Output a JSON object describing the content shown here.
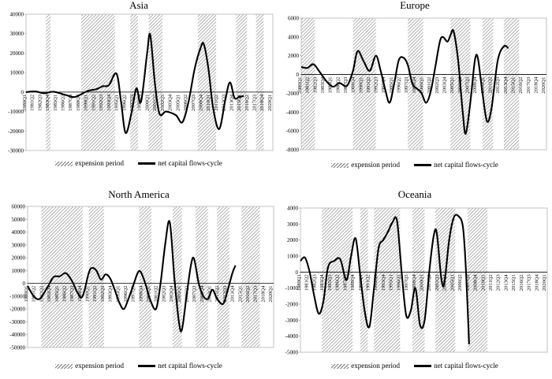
{
  "legend": {
    "expansion_label": "expension period",
    "line_label": "net capital flows-cycle"
  },
  "chart_data": [
    {
      "type": "line",
      "title": "Asia",
      "ylim": [
        -30000,
        40000
      ],
      "yticks": [
        -30000,
        -20000,
        -10000,
        0,
        10000,
        20000,
        30000,
        40000
      ],
      "n_quarters": 162,
      "x_tick_labels": [
        "1980Q1",
        "1981Q2",
        "1982Q3",
        "1983Q4",
        "1985Q1",
        "1986Q2",
        "1987Q3",
        "1988Q4",
        "1990Q1",
        "1991Q2",
        "1992Q3",
        "1993Q4",
        "1995Q1",
        "1996Q2",
        "1997Q3",
        "1998Q4",
        "2000Q1",
        "2001Q2",
        "2002Q3",
        "2003Q4",
        "2005Q1",
        "2006Q2",
        "2007Q3",
        "2008Q4",
        "2010Q1",
        "2011Q2",
        "2012Q3",
        "2013Q4",
        "2015Q1",
        "2016Q2",
        "2017Q3",
        "2018Q4",
        "2020Q1"
      ],
      "tick_every": 5,
      "expansion_periods": [
        [
          13,
          16
        ],
        [
          36,
          58
        ],
        [
          68,
          73
        ],
        [
          80,
          89
        ],
        [
          112,
          124
        ],
        [
          137,
          144
        ],
        [
          150,
          155
        ]
      ],
      "series": [
        {
          "name": "net capital flows-cycle",
          "points": [
            [
              0,
              0
            ],
            [
              6,
              300
            ],
            [
              12,
              -600
            ],
            [
              18,
              200
            ],
            [
              26,
              -1500
            ],
            [
              32,
              -2500
            ],
            [
              40,
              500
            ],
            [
              46,
              1500
            ],
            [
              50,
              3000
            ],
            [
              54,
              3500
            ],
            [
              59,
              9500
            ],
            [
              62,
              -5000
            ],
            [
              65,
              -21000
            ],
            [
              69,
              -10000
            ],
            [
              72,
              2000
            ],
            [
              75,
              -5000
            ],
            [
              79,
              20000
            ],
            [
              81,
              29500
            ],
            [
              84,
              5000
            ],
            [
              87,
              -11000
            ],
            [
              91,
              -10000
            ],
            [
              94,
              -10500
            ],
            [
              98,
              -12000
            ],
            [
              102,
              -15500
            ],
            [
              106,
              -5000
            ],
            [
              110,
              12000
            ],
            [
              114,
              23000
            ],
            [
              116,
              24500
            ],
            [
              119,
              12000
            ],
            [
              122,
              -8000
            ],
            [
              126,
              -19000
            ],
            [
              130,
              -4000
            ],
            [
              133,
              5000
            ],
            [
              136,
              -3000
            ],
            [
              139,
              -2500
            ],
            [
              142,
              -2000
            ]
          ]
        }
      ]
    },
    {
      "type": "line",
      "title": "Europe",
      "ylim": [
        -8000,
        6000
      ],
      "yticks": [
        -8000,
        -6000,
        -4000,
        -2000,
        0,
        2000,
        4000,
        6000
      ],
      "n_quarters": 162,
      "x_tick_labels": [
        "1980Q1",
        "1981Q2",
        "1982Q3",
        "1983Q4",
        "1985Q1",
        "1986Q2",
        "1987Q3",
        "1988Q4",
        "1990Q1",
        "1991Q2",
        "1992Q3",
        "1993Q4",
        "1995Q1",
        "1996Q2",
        "1997Q3",
        "1998Q4",
        "2000Q1",
        "2001Q2",
        "2002Q3",
        "2003Q4",
        "2005Q1",
        "2006Q2",
        "2007Q3",
        "2008Q4",
        "2010Q1",
        "2011Q2",
        "2012Q3",
        "2013Q4",
        "2015Q1",
        "2016Q2",
        "2017Q3",
        "2018Q4",
        "2020Q1"
      ],
      "tick_every": 5,
      "expansion_periods": [
        [
          0,
          9
        ],
        [
          34,
          49
        ],
        [
          70,
          80
        ],
        [
          98,
          111
        ],
        [
          119,
          126
        ],
        [
          133,
          143
        ]
      ],
      "series": [
        {
          "name": "net capital flows-cycle",
          "points": [
            [
              0,
              800
            ],
            [
              4,
              700
            ],
            [
              8,
              1100
            ],
            [
              12,
              300
            ],
            [
              17,
              -800
            ],
            [
              21,
              -1300
            ],
            [
              25,
              -900
            ],
            [
              30,
              -1200
            ],
            [
              34,
              400
            ],
            [
              37,
              2500
            ],
            [
              41,
              1400
            ],
            [
              45,
              400
            ],
            [
              49,
              2000
            ],
            [
              52,
              500
            ],
            [
              55,
              -1500
            ],
            [
              58,
              -3000
            ],
            [
              61,
              -1000
            ],
            [
              64,
              1500
            ],
            [
              67,
              1800
            ],
            [
              70,
              1000
            ],
            [
              73,
              -1000
            ],
            [
              76,
              -1500
            ],
            [
              79,
              -2000
            ],
            [
              82,
              -3000
            ],
            [
              85,
              -1800
            ],
            [
              88,
              800
            ],
            [
              91,
              3500
            ],
            [
              93,
              4000
            ],
            [
              96,
              3500
            ],
            [
              98,
              4200
            ],
            [
              100,
              4600
            ],
            [
              103,
              1500
            ],
            [
              106,
              -4000
            ],
            [
              108,
              -6300
            ],
            [
              111,
              -3000
            ],
            [
              114,
              1500
            ],
            [
              116,
              1700
            ],
            [
              119,
              -2000
            ],
            [
              122,
              -5000
            ],
            [
              125,
              -3500
            ],
            [
              129,
              1500
            ],
            [
              133,
              3000
            ],
            [
              136,
              2800
            ]
          ]
        }
      ]
    },
    {
      "type": "line",
      "title": "North America",
      "ylim": [
        -50000,
        60000
      ],
      "yticks": [
        -50000,
        -40000,
        -30000,
        -20000,
        -10000,
        0,
        10000,
        20000,
        30000,
        40000,
        50000,
        60000
      ],
      "n_quarters": 162,
      "x_tick_labels": [
        "1980Q1",
        "1981Q2",
        "1982Q3",
        "1983Q4",
        "1985Q1",
        "1986Q2",
        "1987Q3",
        "1988Q4",
        "1990Q1",
        "1991Q2",
        "1992Q3",
        "1993Q4",
        "1995Q1",
        "1996Q2",
        "1997Q3",
        "1998Q4",
        "2000Q1",
        "2001Q2",
        "2002Q3",
        "2003Q4",
        "2005Q1",
        "2006Q2",
        "2007Q3",
        "2008Q4",
        "2010Q1",
        "2011Q2",
        "2012Q3",
        "2013Q4",
        "2015Q1",
        "2016Q2",
        "2017Q3",
        "2018Q4",
        "2020Q1"
      ],
      "tick_every": 5,
      "expansion_periods": [
        [
          9,
          36
        ],
        [
          40,
          50
        ],
        [
          73,
          81
        ],
        [
          95,
          101
        ],
        [
          110,
          118
        ],
        [
          124,
          132
        ],
        [
          140,
          152
        ]
      ],
      "series": [
        {
          "name": "net capital flows-cycle",
          "points": [
            [
              0,
              -2000
            ],
            [
              4,
              -10000
            ],
            [
              8,
              -12000
            ],
            [
              13,
              -3000
            ],
            [
              17,
              5000
            ],
            [
              21,
              5500
            ],
            [
              25,
              8000
            ],
            [
              29,
              2000
            ],
            [
              33,
              -8000
            ],
            [
              36,
              -10000
            ],
            [
              40,
              8000
            ],
            [
              42,
              12000
            ],
            [
              45,
              10000
            ],
            [
              48,
              3000
            ],
            [
              51,
              7000
            ],
            [
              54,
              4000
            ],
            [
              57,
              -5000
            ],
            [
              60,
              -15000
            ],
            [
              63,
              -20000
            ],
            [
              66,
              -12000
            ],
            [
              69,
              -2000
            ],
            [
              72,
              8000
            ],
            [
              74,
              9000
            ],
            [
              77,
              0
            ],
            [
              80,
              -12000
            ],
            [
              84,
              -20000
            ],
            [
              87,
              0
            ],
            [
              90,
              30000
            ],
            [
              93,
              48000
            ],
            [
              96,
              5000
            ],
            [
              99,
              -30000
            ],
            [
              101,
              -36000
            ],
            [
              104,
              -10000
            ],
            [
              107,
              15000
            ],
            [
              109,
              19000
            ],
            [
              112,
              0
            ],
            [
              115,
              -10000
            ],
            [
              118,
              -12000
            ],
            [
              121,
              -5000
            ],
            [
              124,
              -12000
            ],
            [
              128,
              -16000
            ],
            [
              131,
              -5000
            ],
            [
              134,
              8000
            ],
            [
              136,
              14000
            ]
          ]
        }
      ]
    },
    {
      "type": "line",
      "title": "Oceania",
      "ylim": [
        -5000,
        4000
      ],
      "yticks": [
        -5000,
        -4000,
        -3000,
        -2000,
        -1000,
        0,
        1000,
        2000,
        3000,
        4000
      ],
      "n_quarters": 162,
      "x_tick_labels": [
        "1980Q1",
        "1981Q2",
        "1982Q3",
        "1983Q4",
        "1985Q1",
        "1986Q2",
        "1987Q3",
        "1988Q4",
        "1990Q1",
        "1991Q2",
        "1992Q3",
        "1993Q4",
        "1995Q1",
        "1996Q2",
        "1997Q3",
        "1998Q4",
        "2000Q1",
        "2001Q2",
        "2002Q3",
        "2003Q4",
        "2005Q1",
        "2006Q2",
        "2007Q3",
        "2008Q4",
        "2010Q1",
        "2011Q2",
        "2012Q3",
        "2013Q4",
        "2015Q1",
        "2016Q2",
        "2017Q3",
        "2018Q4",
        "2020Q1"
      ],
      "tick_every": 5,
      "expansion_periods": [
        [
          14,
          34
        ],
        [
          39,
          44
        ],
        [
          48,
          65
        ],
        [
          73,
          81
        ],
        [
          88,
          101
        ],
        [
          109,
          122
        ]
      ],
      "series": [
        {
          "name": "net capital flows-cycle",
          "points": [
            [
              0,
              700
            ],
            [
              3,
              900
            ],
            [
              6,
              0
            ],
            [
              9,
              -1500
            ],
            [
              12,
              -2600
            ],
            [
              15,
              -1800
            ],
            [
              18,
              300
            ],
            [
              22,
              700
            ],
            [
              26,
              800
            ],
            [
              30,
              -500
            ],
            [
              33,
              1000
            ],
            [
              36,
              2100
            ],
            [
              39,
              -200
            ],
            [
              42,
              -2500
            ],
            [
              45,
              -3400
            ],
            [
              48,
              -1000
            ],
            [
              51,
              1500
            ],
            [
              54,
              2000
            ],
            [
              57,
              2500
            ],
            [
              60,
              3100
            ],
            [
              63,
              3200
            ],
            [
              66,
              0
            ],
            [
              69,
              -2700
            ],
            [
              72,
              -2400
            ],
            [
              75,
              -1000
            ],
            [
              78,
              -3300
            ],
            [
              81,
              -3000
            ],
            [
              84,
              0
            ],
            [
              87,
              2300
            ],
            [
              89,
              2400
            ],
            [
              92,
              -500
            ],
            [
              94,
              -600
            ],
            [
              97,
              2000
            ],
            [
              100,
              3400
            ],
            [
              103,
              3500
            ],
            [
              106,
              2800
            ],
            [
              108,
              0
            ],
            [
              110,
              -4500
            ]
          ]
        }
      ]
    }
  ]
}
